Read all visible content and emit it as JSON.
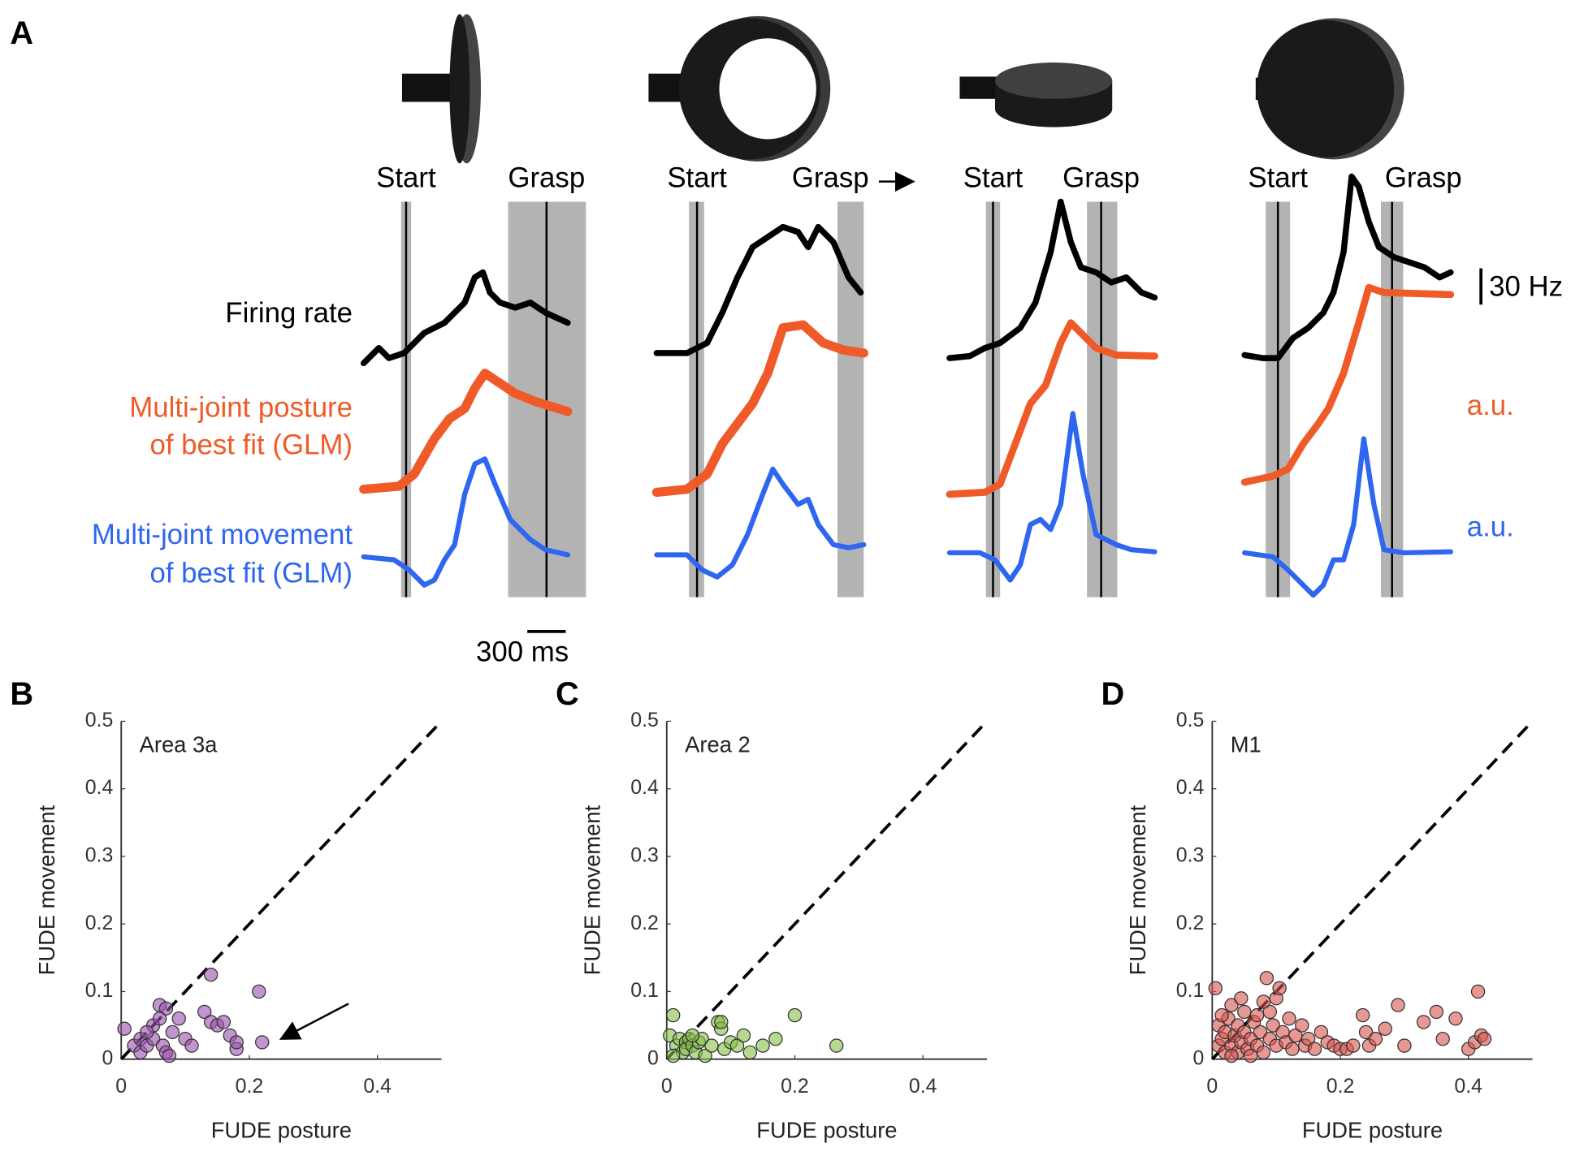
{
  "panel_a": {
    "label": "A",
    "columns": [
      {
        "start": "Start",
        "grasp": "Grasp"
      },
      {
        "start": "Start",
        "grasp": "Grasp"
      },
      {
        "start": "Start",
        "grasp": "Grasp"
      },
      {
        "start": "Start",
        "grasp": "Grasp"
      }
    ],
    "trace_labels": {
      "firing_rate": "Firing rate",
      "posture": [
        "Multi-joint posture",
        "of best fit (GLM)"
      ],
      "movement": [
        "Multi-joint movement",
        "of best fit (GLM)"
      ]
    },
    "scale_bars": {
      "rate": "30 Hz",
      "posture": "a.u.",
      "movement": "a.u.",
      "time": "300 ms"
    }
  },
  "chart_data": [
    {
      "type": "scatter",
      "panel": "B",
      "title": "Area 3a",
      "xlabel": "FUDE posture",
      "ylabel": "FUDE movement",
      "color": "#9b4fae",
      "x": [
        0.005,
        0.02,
        0.03,
        0.03,
        0.04,
        0.05,
        0.05,
        0.06,
        0.065,
        0.07,
        0.07,
        0.075,
        0.08,
        0.09,
        0.1,
        0.11,
        0.13,
        0.14,
        0.14,
        0.15,
        0.16,
        0.17,
        0.18,
        0.18,
        0.215,
        0.22,
        0.06,
        0.04
      ],
      "y": [
        0.045,
        0.02,
        0.01,
        0.03,
        0.02,
        0.05,
        0.03,
        0.08,
        0.02,
        0.075,
        0.01,
        0.005,
        0.04,
        0.06,
        0.03,
        0.02,
        0.07,
        0.125,
        0.055,
        0.05,
        0.055,
        0.035,
        0.015,
        0.025,
        0.1,
        0.025,
        0.06,
        0.04
      ],
      "xlim": [
        0,
        0.5
      ],
      "ylim": [
        0,
        0.5
      ],
      "xticks": [
        0,
        0.2,
        0.4
      ],
      "yticks": [
        0,
        0.1,
        0.2,
        0.3,
        0.4,
        0.5
      ],
      "identity_line": true
    },
    {
      "type": "scatter",
      "panel": "C",
      "title": "Area 2",
      "xlabel": "FUDE posture",
      "ylabel": "FUDE movement",
      "color": "#86c04a",
      "x": [
        0.005,
        0.01,
        0.015,
        0.02,
        0.025,
        0.03,
        0.03,
        0.035,
        0.04,
        0.045,
        0.05,
        0.055,
        0.06,
        0.07,
        0.08,
        0.085,
        0.09,
        0.1,
        0.11,
        0.12,
        0.15,
        0.17,
        0.2,
        0.265,
        0.01,
        0.04,
        0.085,
        0.13
      ],
      "y": [
        0.035,
        0.065,
        0.02,
        0.03,
        0.01,
        0.025,
        0.015,
        0.03,
        0.02,
        0.01,
        0.025,
        0.03,
        0.005,
        0.02,
        0.055,
        0.045,
        0.015,
        0.025,
        0.02,
        0.035,
        0.02,
        0.03,
        0.065,
        0.02,
        0.005,
        0.035,
        0.055,
        0.01
      ],
      "xlim": [
        0,
        0.5
      ],
      "ylim": [
        0,
        0.5
      ],
      "xticks": [
        0,
        0.2,
        0.4
      ],
      "yticks": [
        0,
        0.1,
        0.2,
        0.3,
        0.4,
        0.5
      ],
      "identity_line": true
    },
    {
      "type": "scatter",
      "panel": "D",
      "title": "M1",
      "xlabel": "FUDE posture",
      "ylabel": "FUDE movement",
      "color": "#d9544c",
      "x": [
        0.005,
        0.01,
        0.01,
        0.015,
        0.02,
        0.02,
        0.025,
        0.03,
        0.03,
        0.035,
        0.04,
        0.04,
        0.045,
        0.05,
        0.05,
        0.055,
        0.06,
        0.065,
        0.07,
        0.075,
        0.08,
        0.085,
        0.09,
        0.09,
        0.095,
        0.1,
        0.1,
        0.105,
        0.11,
        0.115,
        0.12,
        0.125,
        0.13,
        0.14,
        0.145,
        0.15,
        0.16,
        0.17,
        0.18,
        0.19,
        0.2,
        0.21,
        0.22,
        0.235,
        0.24,
        0.245,
        0.255,
        0.27,
        0.29,
        0.3,
        0.33,
        0.35,
        0.36,
        0.38,
        0.4,
        0.41,
        0.415,
        0.42,
        0.425,
        0.03,
        0.06,
        0.015,
        0.07,
        0.08,
        0.045
      ],
      "y": [
        0.105,
        0.02,
        0.05,
        0.03,
        0.01,
        0.04,
        0.06,
        0.02,
        0.08,
        0.035,
        0.01,
        0.05,
        0.025,
        0.04,
        0.07,
        0.015,
        0.03,
        0.055,
        0.02,
        0.04,
        0.01,
        0.12,
        0.03,
        0.07,
        0.05,
        0.02,
        0.09,
        0.105,
        0.04,
        0.025,
        0.06,
        0.015,
        0.035,
        0.05,
        0.02,
        0.03,
        0.015,
        0.04,
        0.025,
        0.02,
        0.015,
        0.015,
        0.02,
        0.065,
        0.04,
        0.02,
        0.03,
        0.045,
        0.08,
        0.02,
        0.055,
        0.07,
        0.03,
        0.06,
        0.015,
        0.025,
        0.1,
        0.035,
        0.03,
        0.005,
        0.005,
        0.065,
        0.065,
        0.085,
        0.09
      ],
      "xlim": [
        0,
        0.5
      ],
      "ylim": [
        0,
        0.5
      ],
      "xticks": [
        0,
        0.2,
        0.4
      ],
      "yticks": [
        0,
        0.1,
        0.2,
        0.3,
        0.4,
        0.5
      ],
      "identity_line": true
    }
  ]
}
